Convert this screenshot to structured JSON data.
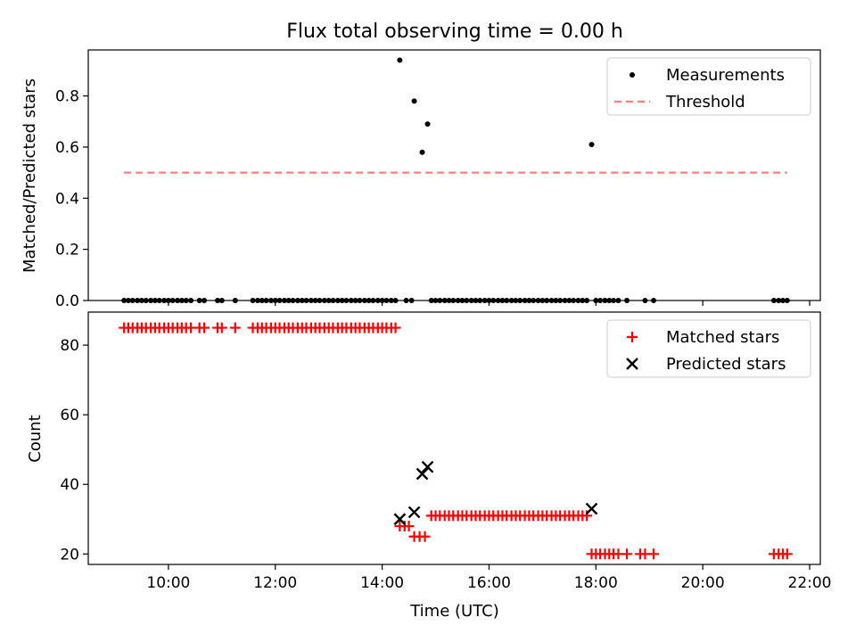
{
  "chart_data": [
    {
      "type": "scatter",
      "title": "Flux total observing time = 0.00 h",
      "ylabel": "Matched/Predicted stars",
      "xlabel": "",
      "ylim": [
        0,
        0.98
      ],
      "yticks": [
        0.0,
        0.2,
        0.4,
        0.6,
        0.8
      ],
      "yticklabels": [
        "0.0",
        "0.2",
        "0.4",
        "0.6",
        "0.8"
      ],
      "legend_position": "top-right",
      "series": [
        {
          "name": "Measurements",
          "kind": "points",
          "color": "#000000",
          "points": [
            [
              9.17,
              0
            ],
            [
              9.25,
              0
            ],
            [
              9.33,
              0
            ],
            [
              9.42,
              0
            ],
            [
              9.5,
              0
            ],
            [
              9.58,
              0
            ],
            [
              9.67,
              0
            ],
            [
              9.75,
              0
            ],
            [
              9.83,
              0
            ],
            [
              9.92,
              0
            ],
            [
              10.0,
              0
            ],
            [
              10.08,
              0
            ],
            [
              10.17,
              0
            ],
            [
              10.25,
              0
            ],
            [
              10.33,
              0
            ],
            [
              10.42,
              0
            ],
            [
              10.58,
              0
            ],
            [
              10.67,
              0
            ],
            [
              10.92,
              0
            ],
            [
              11.0,
              0
            ],
            [
              11.25,
              0
            ],
            [
              11.58,
              0
            ],
            [
              11.67,
              0
            ],
            [
              11.75,
              0
            ],
            [
              11.83,
              0
            ],
            [
              11.92,
              0
            ],
            [
              12.0,
              0
            ],
            [
              12.08,
              0
            ],
            [
              12.17,
              0
            ],
            [
              12.25,
              0
            ],
            [
              12.33,
              0
            ],
            [
              12.42,
              0
            ],
            [
              12.5,
              0
            ],
            [
              12.58,
              0
            ],
            [
              12.67,
              0
            ],
            [
              12.75,
              0
            ],
            [
              12.83,
              0
            ],
            [
              12.92,
              0
            ],
            [
              13.0,
              0
            ],
            [
              13.08,
              0
            ],
            [
              13.17,
              0
            ],
            [
              13.25,
              0
            ],
            [
              13.33,
              0
            ],
            [
              13.42,
              0
            ],
            [
              13.5,
              0
            ],
            [
              13.58,
              0
            ],
            [
              13.67,
              0
            ],
            [
              13.75,
              0
            ],
            [
              13.83,
              0
            ],
            [
              13.92,
              0
            ],
            [
              14.0,
              0
            ],
            [
              14.08,
              0
            ],
            [
              14.17,
              0
            ],
            [
              14.25,
              0
            ],
            [
              14.33,
              0.94
            ],
            [
              14.45,
              0
            ],
            [
              14.55,
              0
            ],
            [
              14.6,
              0.78
            ],
            [
              14.75,
              0.58
            ],
            [
              14.85,
              0.69
            ],
            [
              14.92,
              0
            ],
            [
              15.0,
              0
            ],
            [
              15.08,
              0
            ],
            [
              15.17,
              0
            ],
            [
              15.25,
              0
            ],
            [
              15.33,
              0
            ],
            [
              15.42,
              0
            ],
            [
              15.5,
              0
            ],
            [
              15.58,
              0
            ],
            [
              15.67,
              0
            ],
            [
              15.75,
              0
            ],
            [
              15.83,
              0
            ],
            [
              15.92,
              0
            ],
            [
              16.0,
              0
            ],
            [
              16.08,
              0
            ],
            [
              16.17,
              0
            ],
            [
              16.25,
              0
            ],
            [
              16.33,
              0
            ],
            [
              16.42,
              0
            ],
            [
              16.5,
              0
            ],
            [
              16.58,
              0
            ],
            [
              16.67,
              0
            ],
            [
              16.75,
              0
            ],
            [
              16.83,
              0
            ],
            [
              16.92,
              0
            ],
            [
              17.0,
              0
            ],
            [
              17.08,
              0
            ],
            [
              17.17,
              0
            ],
            [
              17.25,
              0
            ],
            [
              17.33,
              0
            ],
            [
              17.42,
              0
            ],
            [
              17.5,
              0
            ],
            [
              17.58,
              0
            ],
            [
              17.67,
              0
            ],
            [
              17.75,
              0
            ],
            [
              17.83,
              0
            ],
            [
              17.92,
              0.61
            ],
            [
              18.0,
              0
            ],
            [
              18.08,
              0
            ],
            [
              18.17,
              0
            ],
            [
              18.25,
              0
            ],
            [
              18.33,
              0
            ],
            [
              18.42,
              0
            ],
            [
              18.58,
              0
            ],
            [
              18.92,
              0
            ],
            [
              19.08,
              0
            ],
            [
              21.33,
              0
            ],
            [
              21.42,
              0
            ],
            [
              21.5,
              0
            ],
            [
              21.58,
              0
            ]
          ]
        },
        {
          "name": "Threshold",
          "kind": "dashed-line",
          "color": "#ff7f7f",
          "points": [
            [
              9.17,
              0.5
            ],
            [
              21.58,
              0.5
            ]
          ]
        }
      ]
    },
    {
      "type": "scatter",
      "title": "",
      "ylabel": "Count",
      "xlabel": "Time (UTC)",
      "ylim": [
        17,
        89.5
      ],
      "xlim": [
        8.5,
        22.2
      ],
      "yticks": [
        20,
        40,
        60,
        80
      ],
      "yticklabels": [
        "20",
        "40",
        "60",
        "80"
      ],
      "xticks": [
        10,
        12,
        14,
        16,
        18,
        20,
        22
      ],
      "xticklabels": [
        "10:00",
        "12:00",
        "14:00",
        "16:00",
        "18:00",
        "20:00",
        "22:00"
      ],
      "legend_position": "top-right",
      "series": [
        {
          "name": "Matched stars",
          "kind": "plus",
          "color": "#ff0000",
          "points": [
            [
              9.17,
              85
            ],
            [
              9.25,
              85
            ],
            [
              9.33,
              85
            ],
            [
              9.42,
              85
            ],
            [
              9.5,
              85
            ],
            [
              9.58,
              85
            ],
            [
              9.67,
              85
            ],
            [
              9.75,
              85
            ],
            [
              9.83,
              85
            ],
            [
              9.92,
              85
            ],
            [
              10.0,
              85
            ],
            [
              10.08,
              85
            ],
            [
              10.17,
              85
            ],
            [
              10.25,
              85
            ],
            [
              10.33,
              85
            ],
            [
              10.42,
              85
            ],
            [
              10.58,
              85
            ],
            [
              10.67,
              85
            ],
            [
              10.92,
              85
            ],
            [
              11.0,
              85
            ],
            [
              11.25,
              85
            ],
            [
              11.58,
              85
            ],
            [
              11.67,
              85
            ],
            [
              11.75,
              85
            ],
            [
              11.83,
              85
            ],
            [
              11.92,
              85
            ],
            [
              12.0,
              85
            ],
            [
              12.08,
              85
            ],
            [
              12.17,
              85
            ],
            [
              12.25,
              85
            ],
            [
              12.33,
              85
            ],
            [
              12.42,
              85
            ],
            [
              12.5,
              85
            ],
            [
              12.58,
              85
            ],
            [
              12.67,
              85
            ],
            [
              12.75,
              85
            ],
            [
              12.83,
              85
            ],
            [
              12.92,
              85
            ],
            [
              13.0,
              85
            ],
            [
              13.08,
              85
            ],
            [
              13.17,
              85
            ],
            [
              13.25,
              85
            ],
            [
              13.33,
              85
            ],
            [
              13.42,
              85
            ],
            [
              13.5,
              85
            ],
            [
              13.58,
              85
            ],
            [
              13.67,
              85
            ],
            [
              13.75,
              85
            ],
            [
              13.83,
              85
            ],
            [
              13.92,
              85
            ],
            [
              14.0,
              85
            ],
            [
              14.08,
              85
            ],
            [
              14.17,
              85
            ],
            [
              14.25,
              85
            ],
            [
              14.33,
              28
            ],
            [
              14.42,
              28
            ],
            [
              14.5,
              28
            ],
            [
              14.6,
              25
            ],
            [
              14.7,
              25
            ],
            [
              14.8,
              25
            ],
            [
              14.92,
              31
            ],
            [
              15.0,
              31
            ],
            [
              15.08,
              31
            ],
            [
              15.17,
              31
            ],
            [
              15.25,
              31
            ],
            [
              15.33,
              31
            ],
            [
              15.42,
              31
            ],
            [
              15.5,
              31
            ],
            [
              15.58,
              31
            ],
            [
              15.67,
              31
            ],
            [
              15.75,
              31
            ],
            [
              15.83,
              31
            ],
            [
              15.92,
              31
            ],
            [
              16.0,
              31
            ],
            [
              16.08,
              31
            ],
            [
              16.17,
              31
            ],
            [
              16.25,
              31
            ],
            [
              16.33,
              31
            ],
            [
              16.42,
              31
            ],
            [
              16.5,
              31
            ],
            [
              16.58,
              31
            ],
            [
              16.67,
              31
            ],
            [
              16.75,
              31
            ],
            [
              16.83,
              31
            ],
            [
              16.92,
              31
            ],
            [
              17.0,
              31
            ],
            [
              17.08,
              31
            ],
            [
              17.17,
              31
            ],
            [
              17.25,
              31
            ],
            [
              17.33,
              31
            ],
            [
              17.42,
              31
            ],
            [
              17.5,
              31
            ],
            [
              17.58,
              31
            ],
            [
              17.67,
              31
            ],
            [
              17.75,
              31
            ],
            [
              17.83,
              31
            ],
            [
              17.92,
              20
            ],
            [
              18.0,
              20
            ],
            [
              18.08,
              20
            ],
            [
              18.17,
              20
            ],
            [
              18.25,
              20
            ],
            [
              18.33,
              20
            ],
            [
              18.42,
              20
            ],
            [
              18.58,
              20
            ],
            [
              18.83,
              20
            ],
            [
              18.92,
              20
            ],
            [
              19.08,
              20
            ],
            [
              21.33,
              20
            ],
            [
              21.42,
              20
            ],
            [
              21.5,
              20
            ],
            [
              21.58,
              20
            ]
          ]
        },
        {
          "name": "Predicted stars",
          "kind": "x",
          "color": "#000000",
          "points": [
            [
              14.33,
              30
            ],
            [
              14.6,
              32
            ],
            [
              14.75,
              43
            ],
            [
              14.85,
              45
            ],
            [
              17.92,
              33
            ]
          ]
        }
      ]
    }
  ]
}
